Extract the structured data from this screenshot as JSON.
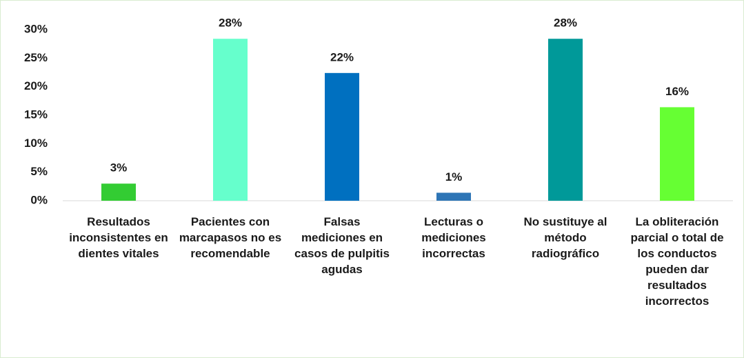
{
  "chart_data": {
    "type": "bar",
    "categories": [
      "Resultados inconsistentes en dientes vitales",
      "Pacientes con marcapasos no es recomendable",
      "Falsas mediciones en casos de pulpitis agudas",
      "Lecturas o mediciones incorrectas",
      "No sustituye al método radiográfico",
      "La obliteración parcial o total de los conductos pueden dar resultados incorrectos"
    ],
    "values": [
      3,
      28.4,
      22.4,
      1.4,
      28.4,
      16.4
    ],
    "value_labels": [
      "3%",
      "28%",
      "22%",
      "1%",
      "28%",
      "16%"
    ],
    "colors": [
      "#33cc33",
      "#66ffcc",
      "#0070c0",
      "#2e75b6",
      "#009999",
      "#66ff33"
    ],
    "ylim": [
      0,
      30
    ],
    "yticks": [
      {
        "value": 0,
        "label": "0%"
      },
      {
        "value": 5,
        "label": "5%"
      },
      {
        "value": 10,
        "label": "10%"
      },
      {
        "value": 15,
        "label": "15%"
      },
      {
        "value": 20,
        "label": "20%"
      },
      {
        "value": 25,
        "label": "25%"
      },
      {
        "value": 30,
        "label": "30%"
      }
    ],
    "grid": false
  }
}
